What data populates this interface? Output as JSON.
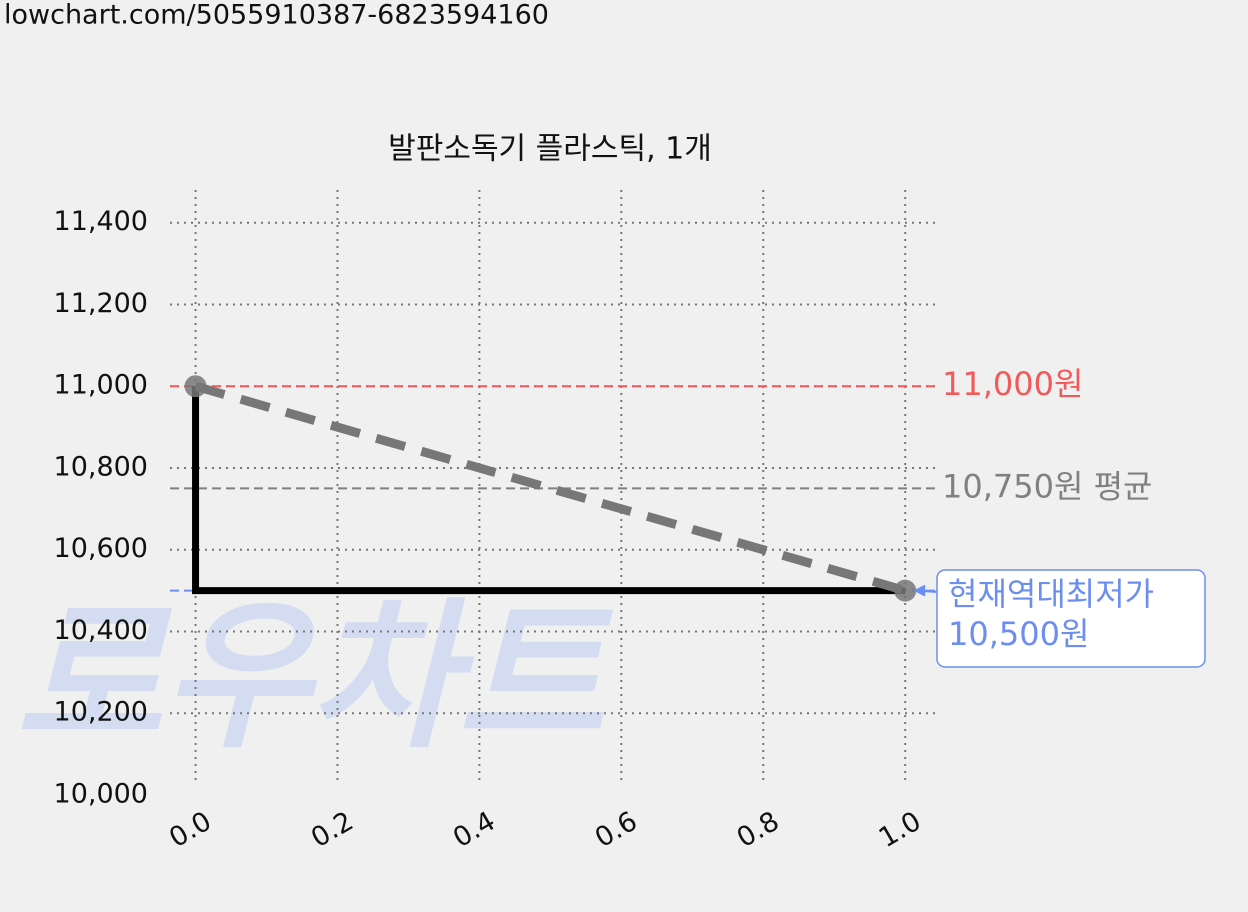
{
  "url": "lowchart.com/5055910387-6823594160",
  "watermark": "로우차트",
  "chart_data": {
    "type": "line",
    "title": "발판소독기 플라스틱, 1개",
    "x": [
      0,
      1
    ],
    "xlim": [
      -0.036,
      1.042
    ],
    "xticks": [
      {
        "value": 0,
        "label": "0.0"
      },
      {
        "value": 0.2,
        "label": "0.2"
      },
      {
        "value": 0.4,
        "label": "0.4"
      },
      {
        "value": 0.6,
        "label": "0.6"
      },
      {
        "value": 0.8,
        "label": "0.8"
      },
      {
        "value": 1,
        "label": "1.0"
      }
    ],
    "ylim": [
      10000,
      11480
    ],
    "yticks": [
      {
        "value": 10000,
        "label": "10,000"
      },
      {
        "value": 10200,
        "label": "10,200"
      },
      {
        "value": 10400,
        "label": "10,400"
      },
      {
        "value": 10600,
        "label": "10,600"
      },
      {
        "value": 10800,
        "label": "10,800"
      },
      {
        "value": 11000,
        "label": "11,000"
      },
      {
        "value": 11200,
        "label": "11,200"
      },
      {
        "value": 11400,
        "label": "11,400"
      }
    ],
    "grid": true,
    "series": [
      {
        "color": "#000000",
        "values": [
          11000,
          10500
        ],
        "step": "pre"
      },
      {
        "color": "#777777",
        "values": [
          11000,
          10500
        ],
        "dashed": true,
        "markers": true
      }
    ],
    "reference_lines": [
      {
        "value": 11000,
        "label": "11,000원",
        "color": "#f05a5a"
      },
      {
        "value": 10750,
        "label": "10,750원 평균",
        "color": "#808080"
      },
      {
        "value": 10500,
        "color": "#6b8ef0"
      }
    ],
    "annotation": {
      "lines": [
        "현재역대최저가",
        "10,500원"
      ],
      "x": 1,
      "y": 10500,
      "color": "#6b8ef0"
    }
  }
}
